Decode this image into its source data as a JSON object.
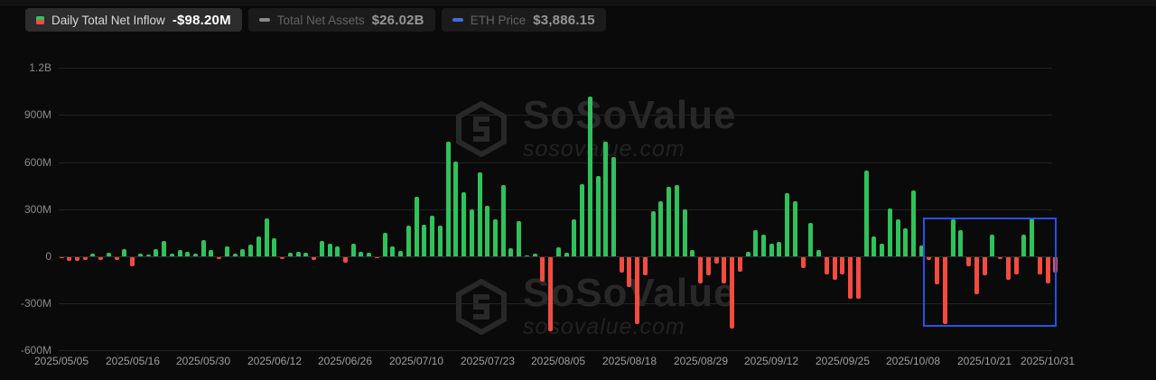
{
  "legend": {
    "daily": {
      "label": "Daily Total Net Inflow",
      "value": "-$98.20M"
    },
    "assets": {
      "label": "Total Net Assets",
      "value": "$26.02B"
    },
    "eth": {
      "label": "ETH Price",
      "value": "$3,886.15"
    }
  },
  "watermark": {
    "brand": "SoSoValue",
    "domain": "sosovalue.com"
  },
  "colors": {
    "positive": "#2fc25b",
    "negative": "#f44b40",
    "highlight_box": "#2353e9",
    "grid": "#232323",
    "axis_text": "#9e9e9e",
    "background": "#0a0a0a"
  },
  "chart_data": {
    "type": "bar",
    "title": "Daily Total Net Inflow",
    "unit": "USD (M = millions, B = billions)",
    "ylim_musd": [
      -600,
      1200
    ],
    "grid": true,
    "y_ticks": [
      {
        "label": "1.2B",
        "value_musd": 1200
      },
      {
        "label": "900M",
        "value_musd": 900
      },
      {
        "label": "600M",
        "value_musd": 600
      },
      {
        "label": "300M",
        "value_musd": 300
      },
      {
        "label": "0",
        "value_musd": 0
      },
      {
        "label": "-300M",
        "value_musd": -300
      },
      {
        "label": "-600M",
        "value_musd": -600
      }
    ],
    "x_ticks": [
      {
        "label": "2025/05/05",
        "index": 0
      },
      {
        "label": "2025/05/16",
        "index": 9
      },
      {
        "label": "2025/05/30",
        "index": 18
      },
      {
        "label": "2025/06/12",
        "index": 27
      },
      {
        "label": "2025/06/26",
        "index": 36
      },
      {
        "label": "2025/07/10",
        "index": 45
      },
      {
        "label": "2025/07/23",
        "index": 54
      },
      {
        "label": "2025/08/05",
        "index": 63
      },
      {
        "label": "2025/08/18",
        "index": 72
      },
      {
        "label": "2025/08/29",
        "index": 81
      },
      {
        "label": "2025/09/12",
        "index": 90
      },
      {
        "label": "2025/09/25",
        "index": 99
      },
      {
        "label": "2025/10/08",
        "index": 108
      },
      {
        "label": "2025/10/21",
        "index": 117
      },
      {
        "label": "2025/10/31",
        "index": 125
      }
    ],
    "values_musd": [
      -3,
      -23,
      -25,
      -20,
      15,
      -18,
      25,
      -15,
      48,
      -60,
      20,
      12,
      45,
      95,
      20,
      40,
      30,
      15,
      103,
      40,
      -10,
      62,
      17,
      47,
      72,
      124,
      241,
      116,
      -10,
      23,
      27,
      23,
      -16,
      97,
      78,
      62,
      -35,
      81,
      27,
      23,
      -8,
      149,
      66,
      33,
      195,
      378,
      204,
      256,
      194,
      731,
      601,
      411,
      301,
      533,
      324,
      233,
      456,
      49,
      227,
      4,
      19,
      -155,
      -470,
      58,
      23,
      233,
      461,
      1018,
      514,
      728,
      634,
      -97,
      -190,
      -423,
      -116,
      287,
      349,
      440,
      456,
      301,
      39,
      -165,
      -116,
      -39,
      -165,
      -456,
      -93,
      29,
      169,
      136,
      81,
      91,
      402,
      353,
      -68,
      213,
      39,
      -107,
      -145,
      -107,
      -262,
      -262,
      547,
      126,
      78,
      305,
      237,
      179,
      421,
      68,
      -19,
      -175,
      -427,
      237,
      165,
      -58,
      -233,
      -116,
      140,
      -12,
      -145,
      -107,
      136,
      243,
      -107,
      -165,
      -98.2
    ],
    "highlight_box": {
      "from_index": 110,
      "to_index": 125,
      "top_musd": 245,
      "bottom_musd": -430
    },
    "legend_position": "top-left"
  }
}
